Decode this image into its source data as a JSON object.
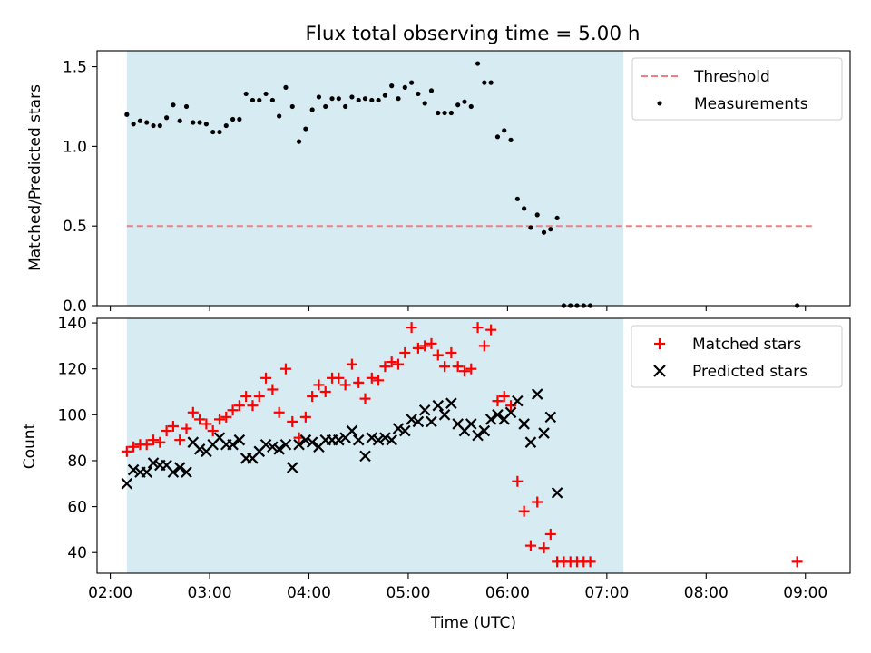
{
  "figure": {
    "title": "Flux total observing time = 5.00 h"
  },
  "chart_data": [
    {
      "type": "scatter",
      "ylabel": "Matched/Predicted stars",
      "xlim": [
        "01:52",
        "09:27"
      ],
      "ylim": [
        0,
        1.6
      ],
      "yticks": [
        "0.0",
        "0.5",
        "1.0",
        "1.5"
      ],
      "grid": false,
      "legend": "top-right",
      "shaded_interval": {
        "start": "02:10",
        "end": "07:10",
        "color": "#add8e6"
      },
      "threshold": {
        "name": "Threshold",
        "y": 0.5,
        "x": [
          "02:10",
          "09:05"
        ],
        "color": "#f08080",
        "style": "dashed"
      },
      "series": [
        {
          "name": "Measurements",
          "color": "#000000",
          "marker": "dot",
          "points": [
            [
              "02:10",
              1.2
            ],
            [
              "02:14",
              1.14
            ],
            [
              "02:18",
              1.16
            ],
            [
              "02:22",
              1.15
            ],
            [
              "02:26",
              1.13
            ],
            [
              "02:30",
              1.13
            ],
            [
              "02:34",
              1.18
            ],
            [
              "02:38",
              1.26
            ],
            [
              "02:42",
              1.16
            ],
            [
              "02:46",
              1.25
            ],
            [
              "02:50",
              1.15
            ],
            [
              "02:54",
              1.15
            ],
            [
              "02:58",
              1.14
            ],
            [
              "03:02",
              1.09
            ],
            [
              "03:06",
              1.09
            ],
            [
              "03:10",
              1.13
            ],
            [
              "03:14",
              1.17
            ],
            [
              "03:18",
              1.17
            ],
            [
              "03:22",
              1.33
            ],
            [
              "03:26",
              1.29
            ],
            [
              "03:30",
              1.29
            ],
            [
              "03:34",
              1.33
            ],
            [
              "03:38",
              1.29
            ],
            [
              "03:42",
              1.19
            ],
            [
              "03:46",
              1.37
            ],
            [
              "03:50",
              1.25
            ],
            [
              "03:54",
              1.03
            ],
            [
              "03:58",
              1.11
            ],
            [
              "04:02",
              1.23
            ],
            [
              "04:06",
              1.31
            ],
            [
              "04:10",
              1.25
            ],
            [
              "04:14",
              1.3
            ],
            [
              "04:18",
              1.3
            ],
            [
              "04:22",
              1.25
            ],
            [
              "04:26",
              1.31
            ],
            [
              "04:30",
              1.29
            ],
            [
              "04:34",
              1.3
            ],
            [
              "04:38",
              1.29
            ],
            [
              "04:42",
              1.29
            ],
            [
              "04:46",
              1.32
            ],
            [
              "04:50",
              1.38
            ],
            [
              "04:54",
              1.3
            ],
            [
              "04:58",
              1.37
            ],
            [
              "05:02",
              1.4
            ],
            [
              "05:06",
              1.33
            ],
            [
              "05:10",
              1.27
            ],
            [
              "05:14",
              1.35
            ],
            [
              "05:18",
              1.21
            ],
            [
              "05:22",
              1.21
            ],
            [
              "05:26",
              1.21
            ],
            [
              "05:30",
              1.26
            ],
            [
              "05:34",
              1.28
            ],
            [
              "05:38",
              1.25
            ],
            [
              "05:42",
              1.52
            ],
            [
              "05:46",
              1.4
            ],
            [
              "05:50",
              1.4
            ],
            [
              "05:54",
              1.06
            ],
            [
              "05:58",
              1.1
            ],
            [
              "06:02",
              1.04
            ],
            [
              "06:06",
              0.67
            ],
            [
              "06:10",
              0.61
            ],
            [
              "06:14",
              0.49
            ],
            [
              "06:18",
              0.57
            ],
            [
              "06:22",
              0.46
            ],
            [
              "06:26",
              0.48
            ],
            [
              "06:30",
              0.55
            ],
            [
              "06:34",
              0.0
            ],
            [
              "06:38",
              0.0
            ],
            [
              "06:42",
              0.0
            ],
            [
              "06:46",
              0.0
            ],
            [
              "06:50",
              0.0
            ],
            [
              "08:55",
              0.0
            ]
          ]
        }
      ]
    },
    {
      "type": "scatter",
      "xlabel": "Time (UTC)",
      "ylabel": "Count",
      "xlim": [
        "01:52",
        "09:27"
      ],
      "ylim": [
        31,
        142
      ],
      "yticks": [
        "40",
        "60",
        "80",
        "100",
        "120",
        "140"
      ],
      "xticks": [
        "02:00",
        "03:00",
        "04:00",
        "05:00",
        "06:00",
        "07:00",
        "08:00",
        "09:00"
      ],
      "grid": false,
      "legend": "top-right",
      "shaded_interval": {
        "start": "02:10",
        "end": "07:10",
        "color": "#add8e6"
      },
      "series": [
        {
          "name": "Matched stars",
          "color": "#ff0000",
          "marker": "plus",
          "points": [
            [
              "02:10",
              84
            ],
            [
              "02:14",
              86
            ],
            [
              "02:18",
              87
            ],
            [
              "02:22",
              87
            ],
            [
              "02:26",
              89
            ],
            [
              "02:30",
              88
            ],
            [
              "02:34",
              93
            ],
            [
              "02:38",
              95
            ],
            [
              "02:42",
              89
            ],
            [
              "02:46",
              94
            ],
            [
              "02:50",
              101
            ],
            [
              "02:54",
              98
            ],
            [
              "02:58",
              96
            ],
            [
              "03:02",
              93
            ],
            [
              "03:06",
              98
            ],
            [
              "03:10",
              99
            ],
            [
              "03:14",
              102
            ],
            [
              "03:18",
              104
            ],
            [
              "03:22",
              108
            ],
            [
              "03:26",
              104
            ],
            [
              "03:30",
              108
            ],
            [
              "03:34",
              116
            ],
            [
              "03:38",
              111
            ],
            [
              "03:42",
              101
            ],
            [
              "03:46",
              120
            ],
            [
              "03:50",
              97
            ],
            [
              "03:54",
              90
            ],
            [
              "03:58",
              99
            ],
            [
              "04:02",
              108
            ],
            [
              "04:06",
              113
            ],
            [
              "04:10",
              110
            ],
            [
              "04:14",
              116
            ],
            [
              "04:18",
              116
            ],
            [
              "04:22",
              113
            ],
            [
              "04:26",
              122
            ],
            [
              "04:30",
              114
            ],
            [
              "04:34",
              107
            ],
            [
              "04:38",
              116
            ],
            [
              "04:42",
              115
            ],
            [
              "04:46",
              121
            ],
            [
              "04:50",
              123
            ],
            [
              "04:54",
              122
            ],
            [
              "04:58",
              127
            ],
            [
              "05:02",
              138
            ],
            [
              "05:06",
              129
            ],
            [
              "05:10",
              130
            ],
            [
              "05:14",
              131
            ],
            [
              "05:18",
              126
            ],
            [
              "05:22",
              121
            ],
            [
              "05:26",
              127
            ],
            [
              "05:30",
              121
            ],
            [
              "05:34",
              119
            ],
            [
              "05:38",
              120
            ],
            [
              "05:42",
              138
            ],
            [
              "05:46",
              130
            ],
            [
              "05:50",
              137
            ],
            [
              "05:54",
              106
            ],
            [
              "05:58",
              108
            ],
            [
              "06:02",
              104
            ],
            [
              "06:06",
              71
            ],
            [
              "06:10",
              58
            ],
            [
              "06:14",
              43
            ],
            [
              "06:18",
              62
            ],
            [
              "06:22",
              42
            ],
            [
              "06:26",
              48
            ],
            [
              "06:30",
              36
            ],
            [
              "06:34",
              36
            ],
            [
              "06:38",
              36
            ],
            [
              "06:42",
              36
            ],
            [
              "06:46",
              36
            ],
            [
              "06:50",
              36
            ],
            [
              "08:55",
              36
            ]
          ]
        },
        {
          "name": "Predicted stars",
          "color": "#000000",
          "marker": "x",
          "points": [
            [
              "02:10",
              70
            ],
            [
              "02:14",
              76
            ],
            [
              "02:18",
              75
            ],
            [
              "02:22",
              75
            ],
            [
              "02:26",
              79
            ],
            [
              "02:30",
              78
            ],
            [
              "02:34",
              78
            ],
            [
              "02:38",
              75
            ],
            [
              "02:42",
              77
            ],
            [
              "02:46",
              75
            ],
            [
              "02:50",
              88
            ],
            [
              "02:54",
              85
            ],
            [
              "02:58",
              84
            ],
            [
              "03:02",
              87
            ],
            [
              "03:06",
              90
            ],
            [
              "03:10",
              87
            ],
            [
              "03:14",
              87
            ],
            [
              "03:18",
              89
            ],
            [
              "03:22",
              81
            ],
            [
              "03:26",
              81
            ],
            [
              "03:30",
              84
            ],
            [
              "03:34",
              87
            ],
            [
              "03:38",
              86
            ],
            [
              "03:42",
              85
            ],
            [
              "03:46",
              87
            ],
            [
              "03:50",
              77
            ],
            [
              "03:54",
              87
            ],
            [
              "03:58",
              89
            ],
            [
              "04:02",
              88
            ],
            [
              "04:06",
              86
            ],
            [
              "04:10",
              89
            ],
            [
              "04:14",
              89
            ],
            [
              "04:18",
              89
            ],
            [
              "04:22",
              90
            ],
            [
              "04:26",
              93
            ],
            [
              "04:30",
              89
            ],
            [
              "04:34",
              82
            ],
            [
              "04:38",
              90
            ],
            [
              "04:42",
              89
            ],
            [
              "04:46",
              90
            ],
            [
              "04:50",
              89
            ],
            [
              "04:54",
              94
            ],
            [
              "04:58",
              93
            ],
            [
              "05:02",
              98
            ],
            [
              "05:06",
              97
            ],
            [
              "05:10",
              102
            ],
            [
              "05:14",
              97
            ],
            [
              "05:18",
              104
            ],
            [
              "05:22",
              100
            ],
            [
              "05:26",
              105
            ],
            [
              "05:30",
              96
            ],
            [
              "05:34",
              93
            ],
            [
              "05:38",
              96
            ],
            [
              "05:42",
              91
            ],
            [
              "05:46",
              93
            ],
            [
              "05:50",
              98
            ],
            [
              "05:54",
              100
            ],
            [
              "05:58",
              98
            ],
            [
              "06:02",
              101
            ],
            [
              "06:06",
              106
            ],
            [
              "06:10",
              96
            ],
            [
              "06:14",
              88
            ],
            [
              "06:18",
              109
            ],
            [
              "06:22",
              92
            ],
            [
              "06:26",
              99
            ],
            [
              "06:30",
              66
            ]
          ]
        }
      ]
    }
  ]
}
